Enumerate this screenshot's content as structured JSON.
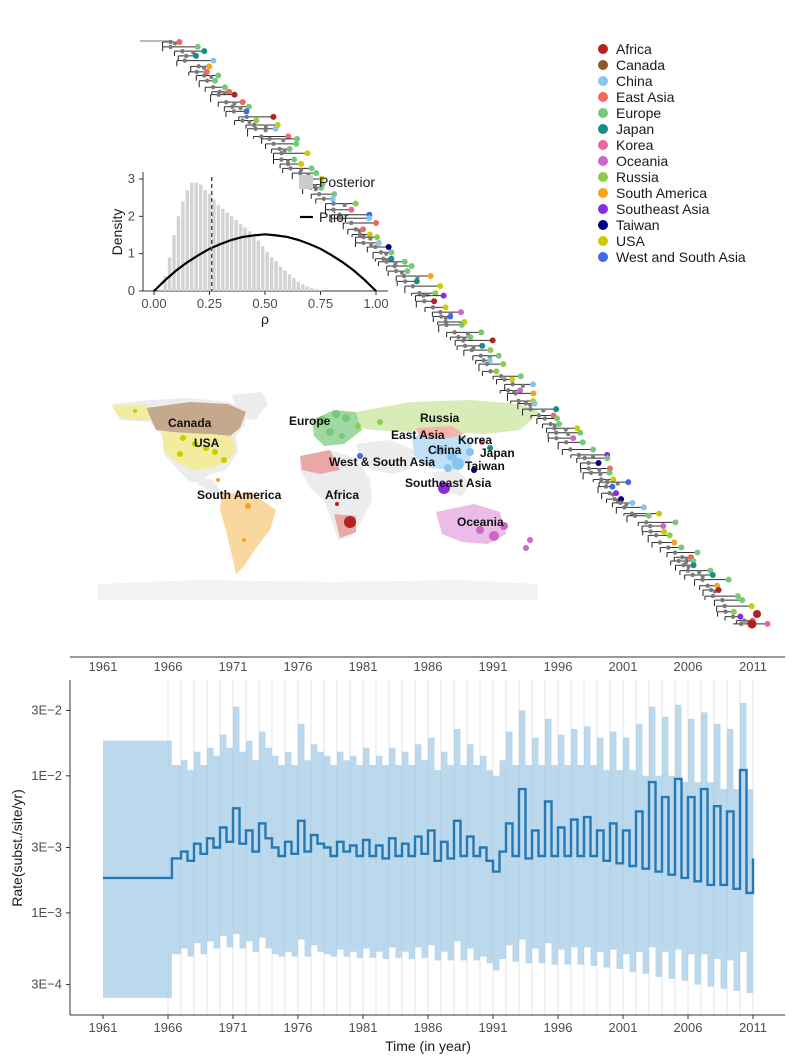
{
  "legend": {
    "items": [
      {
        "label": "Africa",
        "color": "#b22222"
      },
      {
        "label": "Canada",
        "color": "#8b5a2b"
      },
      {
        "label": "China",
        "color": "#87c4ee"
      },
      {
        "label": "East Asia",
        "color": "#ef6a5a"
      },
      {
        "label": "Europe",
        "color": "#77c97a"
      },
      {
        "label": "Japan",
        "color": "#1a8c86"
      },
      {
        "label": "Korea",
        "color": "#e8679e"
      },
      {
        "label": "Oceania",
        "color": "#cc66cc"
      },
      {
        "label": "Russia",
        "color": "#8fcc4a"
      },
      {
        "label": "South America",
        "color": "#f5a21c"
      },
      {
        "label": "Southeast Asia",
        "color": "#8a2be2"
      },
      {
        "label": "Taiwan",
        "color": "#000080"
      },
      {
        "label": "USA",
        "color": "#cccc00"
      },
      {
        "label": "West and South Asia",
        "color": "#4169e1"
      }
    ]
  },
  "map": {
    "labels": [
      "Canada",
      "USA",
      "South America",
      "Europe",
      "Africa",
      "West & South Asia",
      "Russia",
      "East Asia",
      "Korea",
      "China",
      "Japan",
      "Taiwan",
      "Southeast Asia",
      "Oceania"
    ]
  },
  "tree_axis": {
    "ticks": [
      "1961",
      "1966",
      "1971",
      "1976",
      "1981",
      "1986",
      "1991",
      "1996",
      "2001",
      "2006",
      "2011"
    ]
  },
  "chart_data": [
    {
      "type": "area",
      "panel": "inset density",
      "ylabel": "Density",
      "xlabel": "ρ",
      "x_ticks": [
        "0.00",
        "0.25",
        "0.50",
        "0.75",
        "1.00"
      ],
      "y_ticks": [
        "0",
        "1",
        "2",
        "3"
      ],
      "xlim": [
        0,
        1
      ],
      "ylim": [
        0,
        3
      ],
      "legend": [
        "Posterior",
        "Prior"
      ],
      "posterior_histogram": {
        "bin_width": 0.02,
        "x": [
          0.03,
          0.05,
          0.07,
          0.09,
          0.11,
          0.13,
          0.15,
          0.17,
          0.19,
          0.21,
          0.23,
          0.25,
          0.27,
          0.29,
          0.31,
          0.33,
          0.35,
          0.37,
          0.39,
          0.41,
          0.43,
          0.45,
          0.47,
          0.49,
          0.51,
          0.53,
          0.55,
          0.57,
          0.59,
          0.61,
          0.63,
          0.65,
          0.67,
          0.69,
          0.71,
          0.73,
          0.75
        ],
        "density": [
          0.05,
          0.4,
          0.9,
          1.5,
          2.0,
          2.4,
          2.7,
          2.9,
          2.9,
          2.85,
          2.7,
          2.6,
          2.45,
          2.3,
          2.2,
          2.1,
          2.0,
          1.9,
          1.8,
          1.7,
          1.6,
          1.45,
          1.35,
          1.2,
          1.05,
          0.9,
          0.8,
          0.65,
          0.55,
          0.45,
          0.35,
          0.25,
          0.18,
          0.12,
          0.08,
          0.05,
          0.02
        ]
      },
      "prior": {
        "x": [
          0,
          0.05,
          0.1,
          0.15,
          0.2,
          0.25,
          0.3,
          0.35,
          0.4,
          0.45,
          0.5,
          0.55,
          0.6,
          0.65,
          0.7,
          0.75,
          0.8,
          0.85,
          0.9,
          0.95,
          1.0
        ],
        "density": [
          0,
          0.29,
          0.55,
          0.77,
          0.96,
          1.13,
          1.26,
          1.37,
          1.45,
          1.49,
          1.52,
          1.49,
          1.45,
          1.37,
          1.26,
          1.13,
          0.96,
          0.77,
          0.55,
          0.29,
          0
        ]
      },
      "posterior_mean": 0.26
    },
    {
      "type": "line",
      "panel": "rate through time",
      "xlabel": "Time (in year)",
      "ylabel": "Rate(subst./site/yr)",
      "x_ticks": [
        "1961",
        "1966",
        "1971",
        "1976",
        "1981",
        "1986",
        "1991",
        "1996",
        "2001",
        "2006",
        "2011"
      ],
      "y_ticks": [
        "3E−4",
        "1E−3",
        "3E−3",
        "1E−2",
        "3E−2"
      ],
      "xlim": [
        1961,
        2011
      ],
      "y_scale": "log",
      "ylim": [
        0.00018,
        0.05
      ],
      "series": [
        {
          "x": [
            1961,
            1966,
            1966.3,
            1967,
            1967.5,
            1968,
            1968.5,
            1969,
            1969.5,
            1970,
            1970.5,
            1971,
            1971.5,
            1972,
            1972.5,
            1973,
            1973.5,
            1974,
            1974.5,
            1975,
            1975.5,
            1976,
            1976.5,
            1977,
            1977.5,
            1978,
            1978.5,
            1979,
            1979.5,
            1980,
            1980.5,
            1981,
            1981.5,
            1982,
            1982.5,
            1983,
            1983.5,
            1984,
            1984.5,
            1985,
            1985.5,
            1986,
            1986.5,
            1987,
            1987.5,
            1988,
            1988.5,
            1989,
            1989.5,
            1990,
            1990.5,
            1991,
            1991.5,
            1992,
            1992.5,
            1993,
            1993.5,
            1994,
            1994.5,
            1995,
            1995.5,
            1996,
            1996.5,
            1997,
            1997.5,
            1998,
            1998.5,
            1999,
            1999.5,
            2000,
            2000.5,
            2001,
            2001.5,
            2002,
            2002.5,
            2003,
            2003.5,
            2004,
            2004.5,
            2005,
            2005.5,
            2006,
            2006.5,
            2007,
            2007.5,
            2008,
            2008.5,
            2009,
            2009.5,
            2010,
            2010.5,
            2011
          ],
          "y": [
            0.0018,
            0.0018,
            0.0025,
            0.0028,
            0.0024,
            0.0032,
            0.0027,
            0.0035,
            0.003,
            0.0042,
            0.0033,
            0.0058,
            0.0032,
            0.004,
            0.0028,
            0.0045,
            0.0035,
            0.003,
            0.0026,
            0.0033,
            0.0027,
            0.0047,
            0.0028,
            0.0037,
            0.0032,
            0.003,
            0.0026,
            0.0033,
            0.0028,
            0.0031,
            0.0026,
            0.0034,
            0.0026,
            0.0031,
            0.0025,
            0.0035,
            0.0026,
            0.0032,
            0.0026,
            0.0036,
            0.0027,
            0.004,
            0.0024,
            0.0033,
            0.0025,
            0.0047,
            0.0026,
            0.0036,
            0.0026,
            0.003,
            0.0024,
            0.002,
            0.0028,
            0.0045,
            0.0026,
            0.008,
            0.0025,
            0.004,
            0.0026,
            0.0065,
            0.0026,
            0.0042,
            0.0026,
            0.0048,
            0.0026,
            0.005,
            0.0026,
            0.004,
            0.0024,
            0.0045,
            0.0023,
            0.004,
            0.0022,
            0.0055,
            0.0021,
            0.009,
            0.002,
            0.007,
            0.0019,
            0.0095,
            0.0018,
            0.007,
            0.0017,
            0.008,
            0.0016,
            0.006,
            0.0016,
            0.0055,
            0.0015,
            0.011,
            0.0014,
            0.0025
          ],
          "lower": [
            0.00024,
            0.00024,
            0.0005,
            0.00055,
            0.00048,
            0.0006,
            0.0005,
            0.00062,
            0.00055,
            0.00068,
            0.00056,
            0.0007,
            0.00055,
            0.00062,
            0.00052,
            0.00066,
            0.00055,
            0.0005,
            0.00048,
            0.00052,
            0.00048,
            0.00064,
            0.00048,
            0.00058,
            0.00052,
            0.0005,
            0.00048,
            0.00054,
            0.00048,
            0.00052,
            0.00047,
            0.00055,
            0.00047,
            0.00052,
            0.00046,
            0.00056,
            0.00047,
            0.00052,
            0.00046,
            0.00056,
            0.00047,
            0.00058,
            0.00045,
            0.00052,
            0.00045,
            0.00062,
            0.00045,
            0.00055,
            0.00045,
            0.00048,
            0.00043,
            0.00038,
            0.00046,
            0.00058,
            0.00044,
            0.00064,
            0.00043,
            0.00055,
            0.00043,
            0.0006,
            0.00042,
            0.00054,
            0.00042,
            0.00056,
            0.00042,
            0.00056,
            0.00041,
            0.00052,
            0.0004,
            0.00054,
            0.00039,
            0.0005,
            0.00037,
            0.00052,
            0.00036,
            0.00056,
            0.00034,
            0.00052,
            0.00033,
            0.00054,
            0.00032,
            0.0005,
            0.0003,
            0.0005,
            0.00029,
            0.00046,
            0.00028,
            0.00045,
            0.00027,
            0.00052,
            0.00026,
            0.0003
          ],
          "upper": [
            0.018,
            0.018,
            0.012,
            0.013,
            0.011,
            0.015,
            0.012,
            0.016,
            0.014,
            0.02,
            0.016,
            0.032,
            0.015,
            0.018,
            0.013,
            0.021,
            0.016,
            0.014,
            0.012,
            0.015,
            0.012,
            0.024,
            0.013,
            0.017,
            0.015,
            0.014,
            0.012,
            0.015,
            0.013,
            0.014,
            0.012,
            0.016,
            0.012,
            0.014,
            0.012,
            0.016,
            0.012,
            0.015,
            0.012,
            0.017,
            0.013,
            0.019,
            0.011,
            0.015,
            0.012,
            0.022,
            0.012,
            0.017,
            0.012,
            0.014,
            0.011,
            0.01,
            0.013,
            0.021,
            0.012,
            0.03,
            0.012,
            0.019,
            0.012,
            0.026,
            0.012,
            0.02,
            0.012,
            0.022,
            0.012,
            0.023,
            0.012,
            0.019,
            0.011,
            0.021,
            0.011,
            0.019,
            0.011,
            0.024,
            0.01,
            0.032,
            0.01,
            0.027,
            0.01,
            0.033,
            0.009,
            0.026,
            0.009,
            0.029,
            0.009,
            0.024,
            0.008,
            0.022,
            0.008,
            0.034,
            0.008,
            0.011
          ]
        }
      ]
    }
  ]
}
